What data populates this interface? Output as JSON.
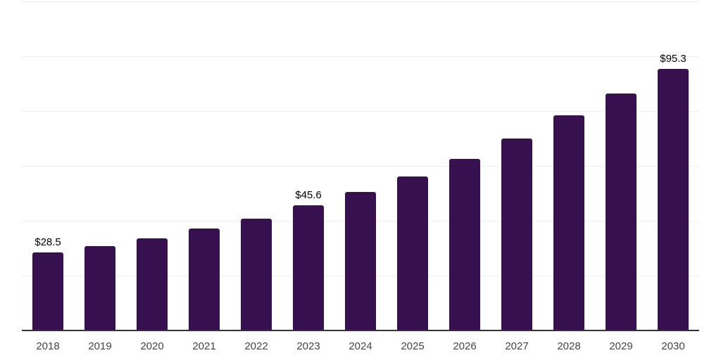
{
  "chart_data": {
    "type": "bar",
    "title": "",
    "xlabel": "",
    "ylabel": "",
    "categories": [
      "2018",
      "2019",
      "2020",
      "2021",
      "2022",
      "2023",
      "2024",
      "2025",
      "2026",
      "2027",
      "2028",
      "2029",
      "2030"
    ],
    "values": [
      28.5,
      30.9,
      33.5,
      37.2,
      40.9,
      45.6,
      50.6,
      56.2,
      62.6,
      70.0,
      78.5,
      86.5,
      95.3
    ],
    "bar_labels": [
      "$28.5",
      "",
      "",
      "",
      "",
      "$45.6",
      "",
      "",
      "",
      "",
      "",
      "",
      "$95.3"
    ],
    "ylim": [
      0,
      120
    ],
    "gridline_step": 20,
    "grid": true,
    "y_tick_labels_visible": false,
    "legend": "none",
    "colors": {
      "bar": "#36104f",
      "gridline": "#f0f0f0",
      "axis": "#333333",
      "value_label": "#000000",
      "tick_label": "#444444",
      "background": "#ffffff"
    }
  }
}
